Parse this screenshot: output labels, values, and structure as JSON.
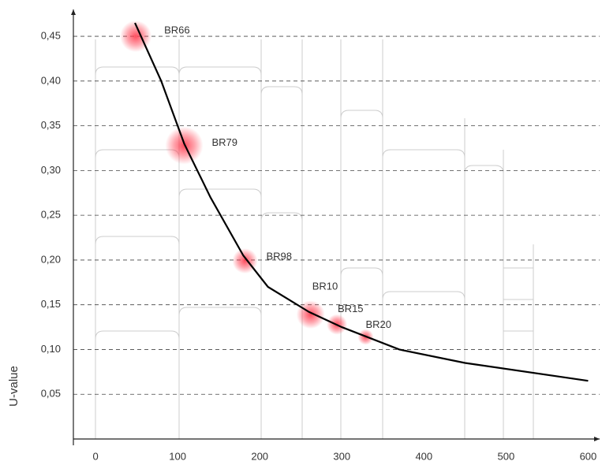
{
  "chart_data": {
    "type": "line",
    "y_label": "U-value",
    "xlim": [
      -27,
      614
    ],
    "ylim": [
      0,
      0.48
    ],
    "xticks": [
      0,
      100,
      200,
      300,
      400,
      500,
      600
    ],
    "yticks": [
      {
        "value": 0.05,
        "label": "0,05"
      },
      {
        "value": 0.1,
        "label": "0,10"
      },
      {
        "value": 0.15,
        "label": "0,15"
      },
      {
        "value": 0.2,
        "label": "0,20"
      },
      {
        "value": 0.25,
        "label": "0,25"
      },
      {
        "value": 0.3,
        "label": "0,30"
      },
      {
        "value": 0.35,
        "label": "0,35"
      },
      {
        "value": 0.4,
        "label": "0,40"
      },
      {
        "value": 0.45,
        "label": "0,45"
      }
    ],
    "grid": true,
    "series": [
      {
        "color": "#000000",
        "x": [
          48,
          80,
          108,
          140,
          180,
          210,
          260,
          300,
          370,
          450,
          600
        ],
        "values": [
          0.465,
          0.4,
          0.33,
          0.27,
          0.205,
          0.17,
          0.142,
          0.125,
          0.1,
          0.085,
          0.065
        ]
      }
    ],
    "points": {
      "color": "#ff3b4e",
      "labels": [
        "BR66",
        "BR79",
        "BR98",
        "BR10",
        "BR15",
        "BR20"
      ],
      "x": [
        49,
        108,
        182,
        262,
        294,
        329
      ],
      "values": [
        0.45,
        0.328,
        0.199,
        0.139,
        0.128,
        0.114
      ]
    }
  }
}
